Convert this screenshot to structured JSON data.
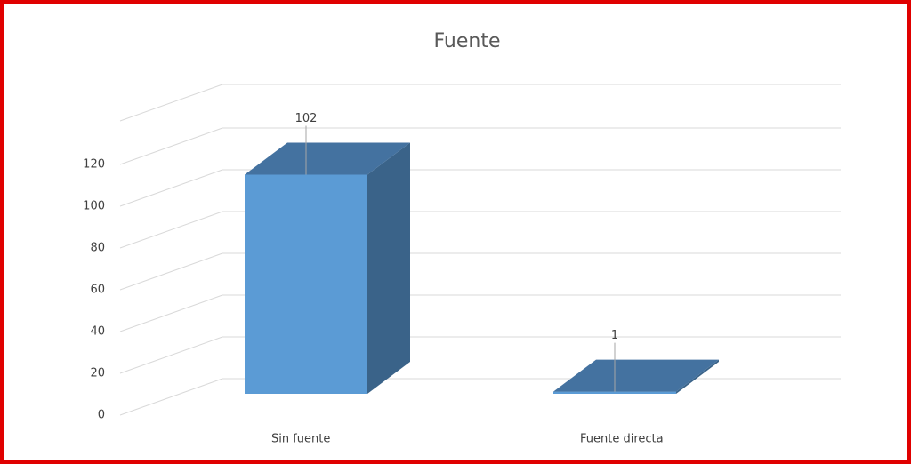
{
  "chart_data": {
    "type": "bar3d",
    "title": "Fuente",
    "categories": [
      "Sin fuente",
      "Fuente directa"
    ],
    "values": [
      102,
      1
    ],
    "color": "#5b9bd5",
    "ylim": [
      0,
      120
    ],
    "yticks": [
      0,
      20,
      40,
      60,
      80,
      100,
      120
    ],
    "grid": true
  }
}
